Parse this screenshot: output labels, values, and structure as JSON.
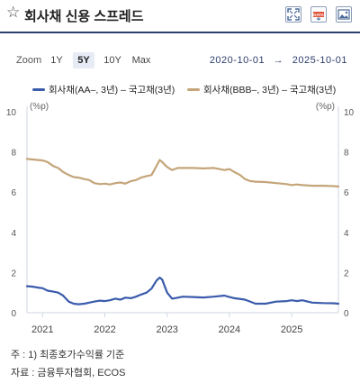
{
  "header": {
    "title": "회사채 신용 스프레드",
    "star_icon": "star-outline-icon",
    "buttons": [
      "fullscreen-icon",
      "data-download-icon",
      "image-download-icon"
    ],
    "data_button_text": "DATA"
  },
  "toolbar": {
    "zoom_label": "Zoom",
    "buttons": [
      {
        "label": "1Y",
        "active": false
      },
      {
        "label": "5Y",
        "active": true
      },
      {
        "label": "10Y",
        "active": false
      },
      {
        "label": "Max",
        "active": false
      }
    ],
    "range_from": "2020-10-01",
    "range_arrow": "→",
    "range_to": "2025-10-01"
  },
  "legend": [
    {
      "label": "회사채(AA–, 3년) – 국고채(3년)",
      "color": "#3a5bab"
    },
    {
      "label": "회사채(BBB–, 3년) – 국고채(3년)",
      "color": "#c4a57a"
    }
  ],
  "chart_data": {
    "type": "line",
    "x_unit": "year",
    "x_range": [
      2020.75,
      2025.75
    ],
    "x_ticks": [
      "2021",
      "2022",
      "2023",
      "2024",
      "2025"
    ],
    "y_left_ticks": [
      "0",
      "2",
      "4",
      "6",
      "8",
      "10"
    ],
    "y_right_ticks": [
      "0",
      "2",
      "4",
      "6",
      "8",
      "10"
    ],
    "y_unit_left": "(%p)",
    "y_unit_right": "(%p)",
    "ylim": [
      0,
      10
    ],
    "grid": false,
    "series": [
      {
        "name": "회사채(AA–, 3년) – 국고채(3년)",
        "color": "#3a5bab",
        "points": [
          [
            2020.75,
            1.32
          ],
          [
            2020.83,
            1.3
          ],
          [
            2020.92,
            1.25
          ],
          [
            2021.0,
            1.22
          ],
          [
            2021.08,
            1.1
          ],
          [
            2021.17,
            1.05
          ],
          [
            2021.25,
            1.0
          ],
          [
            2021.33,
            0.85
          ],
          [
            2021.42,
            0.55
          ],
          [
            2021.5,
            0.45
          ],
          [
            2021.58,
            0.42
          ],
          [
            2021.67,
            0.45
          ],
          [
            2021.75,
            0.5
          ],
          [
            2021.83,
            0.55
          ],
          [
            2021.92,
            0.6
          ],
          [
            2022.0,
            0.58
          ],
          [
            2022.08,
            0.62
          ],
          [
            2022.17,
            0.7
          ],
          [
            2022.25,
            0.65
          ],
          [
            2022.33,
            0.75
          ],
          [
            2022.42,
            0.72
          ],
          [
            2022.5,
            0.8
          ],
          [
            2022.58,
            0.9
          ],
          [
            2022.67,
            1.0
          ],
          [
            2022.75,
            1.2
          ],
          [
            2022.83,
            1.6
          ],
          [
            2022.88,
            1.75
          ],
          [
            2022.92,
            1.65
          ],
          [
            2023.0,
            1.0
          ],
          [
            2023.08,
            0.7
          ],
          [
            2023.17,
            0.75
          ],
          [
            2023.25,
            0.8
          ],
          [
            2023.42,
            0.78
          ],
          [
            2023.58,
            0.76
          ],
          [
            2023.75,
            0.8
          ],
          [
            2023.92,
            0.85
          ],
          [
            2024.0,
            0.78
          ],
          [
            2024.08,
            0.72
          ],
          [
            2024.25,
            0.65
          ],
          [
            2024.42,
            0.45
          ],
          [
            2024.58,
            0.45
          ],
          [
            2024.75,
            0.55
          ],
          [
            2024.92,
            0.58
          ],
          [
            2025.0,
            0.62
          ],
          [
            2025.08,
            0.58
          ],
          [
            2025.17,
            0.62
          ],
          [
            2025.33,
            0.5
          ],
          [
            2025.5,
            0.48
          ],
          [
            2025.67,
            0.47
          ],
          [
            2025.75,
            0.45
          ]
        ]
      },
      {
        "name": "회사채(BBB–, 3년) – 국고채(3년)",
        "color": "#c4a57a",
        "points": [
          [
            2020.75,
            7.65
          ],
          [
            2020.83,
            7.63
          ],
          [
            2020.92,
            7.6
          ],
          [
            2021.0,
            7.58
          ],
          [
            2021.08,
            7.5
          ],
          [
            2021.17,
            7.3
          ],
          [
            2021.25,
            7.2
          ],
          [
            2021.33,
            7.0
          ],
          [
            2021.42,
            6.85
          ],
          [
            2021.5,
            6.75
          ],
          [
            2021.58,
            6.72
          ],
          [
            2021.67,
            6.65
          ],
          [
            2021.75,
            6.6
          ],
          [
            2021.83,
            6.45
          ],
          [
            2021.92,
            6.4
          ],
          [
            2022.0,
            6.42
          ],
          [
            2022.08,
            6.38
          ],
          [
            2022.17,
            6.45
          ],
          [
            2022.25,
            6.48
          ],
          [
            2022.33,
            6.42
          ],
          [
            2022.42,
            6.55
          ],
          [
            2022.5,
            6.6
          ],
          [
            2022.58,
            6.72
          ],
          [
            2022.67,
            6.8
          ],
          [
            2022.75,
            6.85
          ],
          [
            2022.83,
            7.3
          ],
          [
            2022.88,
            7.6
          ],
          [
            2022.92,
            7.5
          ],
          [
            2023.0,
            7.25
          ],
          [
            2023.08,
            7.1
          ],
          [
            2023.17,
            7.2
          ],
          [
            2023.25,
            7.2
          ],
          [
            2023.42,
            7.2
          ],
          [
            2023.58,
            7.18
          ],
          [
            2023.75,
            7.2
          ],
          [
            2023.92,
            7.1
          ],
          [
            2024.0,
            7.15
          ],
          [
            2024.08,
            7.0
          ],
          [
            2024.17,
            6.85
          ],
          [
            2024.25,
            6.65
          ],
          [
            2024.33,
            6.55
          ],
          [
            2024.42,
            6.52
          ],
          [
            2024.58,
            6.5
          ],
          [
            2024.75,
            6.45
          ],
          [
            2024.92,
            6.4
          ],
          [
            2025.0,
            6.35
          ],
          [
            2025.08,
            6.38
          ],
          [
            2025.17,
            6.35
          ],
          [
            2025.33,
            6.32
          ],
          [
            2025.5,
            6.32
          ],
          [
            2025.67,
            6.3
          ],
          [
            2025.75,
            6.28
          ]
        ]
      }
    ]
  },
  "notes": {
    "note1": "주 : 1)  최종호가수익률 기준",
    "note2": "자료 :  금융투자협회, ECOS"
  }
}
